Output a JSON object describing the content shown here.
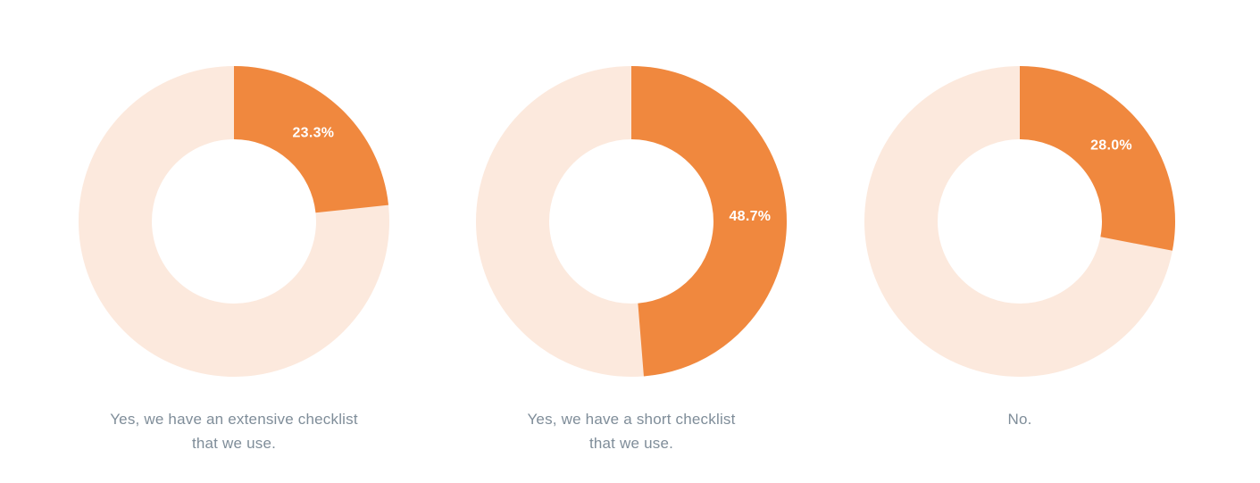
{
  "colors": {
    "slice": "#F0883E",
    "remainder": "#FCE9DD",
    "value_label": "#FFFFFF",
    "caption": "#7F8D99",
    "background": "#FFFFFF"
  },
  "chart_data": {
    "type": "pie",
    "subtype": "donut",
    "direction": "clockwise",
    "start_angle_deg": 0,
    "unit": "%",
    "legend": "none",
    "charts": [
      {
        "category": "Yes, we have an extensive checklist that we use.",
        "caption_lines": [
          "Yes, we have an extensive checklist",
          "that we use."
        ],
        "value": 23.3,
        "value_label": "23.3%"
      },
      {
        "category": "Yes, we have a short checklist that we use.",
        "caption_lines": [
          "Yes, we have a short checklist",
          "that we use."
        ],
        "value": 48.7,
        "value_label": "48.7%"
      },
      {
        "category": "No.",
        "caption_lines": [
          "No.",
          ""
        ],
        "value": 28.0,
        "value_label": "28.0%"
      }
    ]
  }
}
